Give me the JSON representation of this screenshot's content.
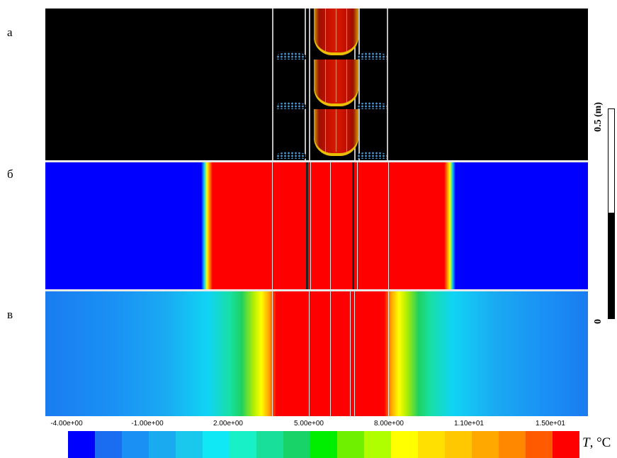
{
  "panel_labels": [
    "а",
    "б",
    "в"
  ],
  "scale_bar": {
    "top_label": "0.5 (m)",
    "bottom_label": "0"
  },
  "axis_ticks": [
    "-4.00e+00",
    "-1.00e+00",
    "2.00e+00",
    "5.00e+00",
    "8.00e+00",
    "1.10e+01",
    "1.50e+01"
  ],
  "legend": {
    "title_var": "T",
    "title_unit": ", °C",
    "colors": [
      "#0000ff",
      "#1a6cf0",
      "#1a90f5",
      "#1aaaf0",
      "#1ac8ee",
      "#10e8f5",
      "#18f0c8",
      "#18e09a",
      "#18d468",
      "#00ee00",
      "#6ef000",
      "#b0ff00",
      "#ffff00",
      "#ffe000",
      "#ffc800",
      "#ffa800",
      "#ff8800",
      "#ff5a00",
      "#ff0000"
    ]
  }
}
